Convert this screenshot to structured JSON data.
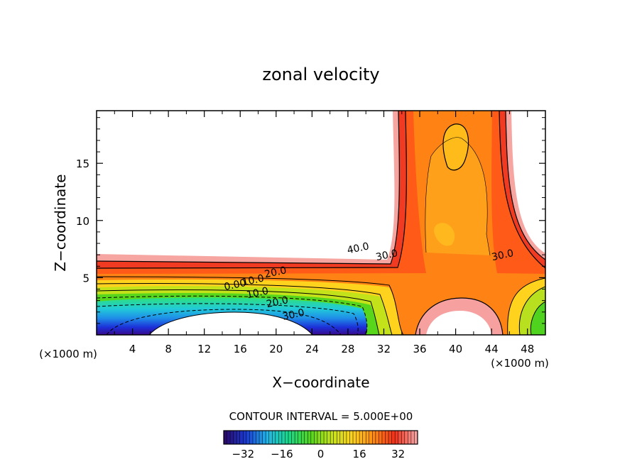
{
  "chart_data": {
    "type": "contour",
    "title": "zonal velocity",
    "xlabel": "X−coordinate",
    "ylabel": "Z−coordinate",
    "x_unit_left": "(×1000 m)",
    "x_unit_right": "(×1000 m)",
    "xlim": [
      0,
      50
    ],
    "ylim": [
      0,
      19.6
    ],
    "x_ticks": [
      4,
      8,
      12,
      16,
      20,
      24,
      28,
      32,
      36,
      40,
      44,
      48
    ],
    "y_ticks": [
      5,
      10,
      15
    ],
    "contour_interval_text": "CONTOUR INTERVAL = 5.000E+00",
    "contour_labels": [
      {
        "text": "40.0",
        "x": 29.2,
        "y": 7.3
      },
      {
        "text": "30.0",
        "x": 32.4,
        "y": 6.7
      },
      {
        "text": "30.0",
        "x": 45.3,
        "y": 6.7
      },
      {
        "text": "20.0",
        "x": 20.0,
        "y": 5.2
      },
      {
        "text": "10.0",
        "x": 17.5,
        "y": 4.5
      },
      {
        "text": "0.00",
        "x": 15.5,
        "y": 4.1
      },
      {
        "text": "10.0",
        "x": 18.0,
        "y": 3.4
      },
      {
        "text": "20.0",
        "x": 20.2,
        "y": 2.6
      },
      {
        "text": "30.0",
        "x": 22.0,
        "y": 1.5
      }
    ],
    "colorbar": {
      "ticks": [
        -32,
        -16,
        0,
        16,
        32
      ],
      "range": [
        -40,
        40
      ],
      "colors": [
        "#2a0a6e",
        "#1a3bd6",
        "#21b7e6",
        "#19d889",
        "#52d61e",
        "#c3e21a",
        "#ffd21e",
        "#ff8a14",
        "#f2301a",
        "#f6a0a0"
      ]
    },
    "grid": false,
    "legend": "colorbar-bottom"
  }
}
